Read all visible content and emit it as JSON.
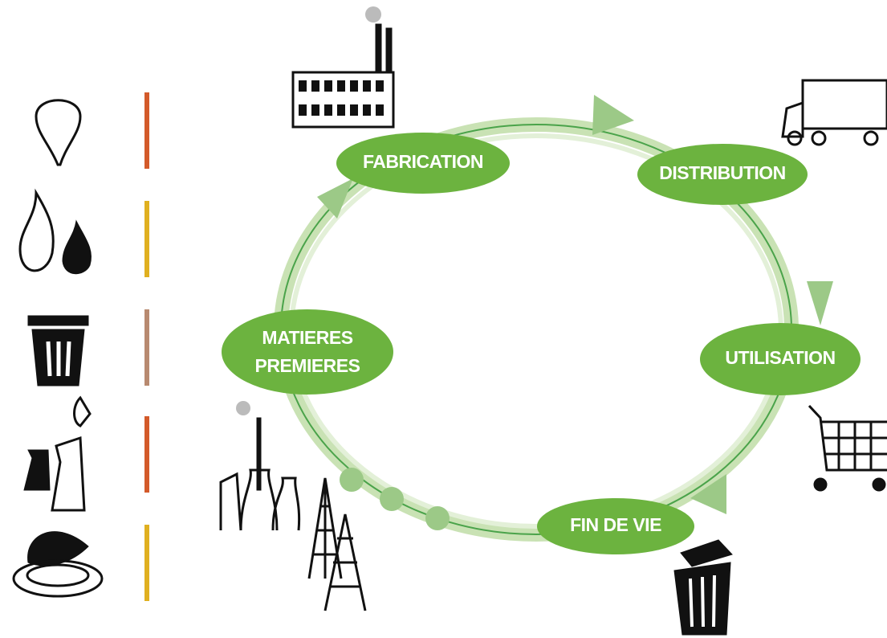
{
  "nodes": [
    {
      "lines": [
        "FABRICATION"
      ]
    },
    {
      "lines": [
        "DISTRIBUTION"
      ]
    },
    {
      "lines": [
        "UTILISATION"
      ]
    },
    {
      "lines": [
        "FIN DE VIE"
      ]
    },
    {
      "lines": [
        "MATIERES",
        "PREMIERES"
      ]
    }
  ]
}
